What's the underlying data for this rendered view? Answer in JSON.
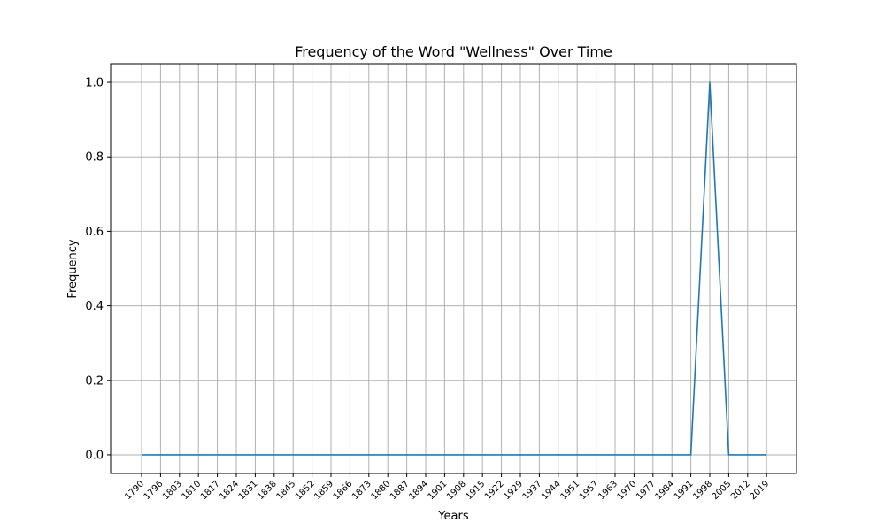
{
  "chart_data": {
    "type": "line",
    "title": "Frequency of the Word \"Wellness\" Over Time",
    "xlabel": "Years",
    "ylabel": "Frequency",
    "grid": true,
    "x": [
      "1790",
      "1796",
      "1803",
      "1810",
      "1817",
      "1824",
      "1831",
      "1838",
      "1845",
      "1852",
      "1859",
      "1866",
      "1873",
      "1880",
      "1887",
      "1894",
      "1901",
      "1908",
      "1915",
      "1922",
      "1929",
      "1937",
      "1944",
      "1951",
      "1957",
      "1963",
      "1970",
      "1977",
      "1984",
      "1991",
      "1998",
      "2005",
      "2012",
      "2019"
    ],
    "series": [
      {
        "color": "#1f77b4",
        "values": [
          0,
          0,
          0,
          0,
          0,
          0,
          0,
          0,
          0,
          0,
          0,
          0,
          0,
          0,
          0,
          0,
          0,
          0,
          0,
          0,
          0,
          0,
          0,
          0,
          0,
          0,
          0,
          0,
          0,
          0,
          1.0,
          0,
          0,
          0
        ]
      }
    ],
    "ylim": [
      -0.05,
      1.05
    ],
    "yticks": [
      "0.0",
      "0.2",
      "0.4",
      "0.6",
      "0.8",
      "1.0"
    ]
  }
}
